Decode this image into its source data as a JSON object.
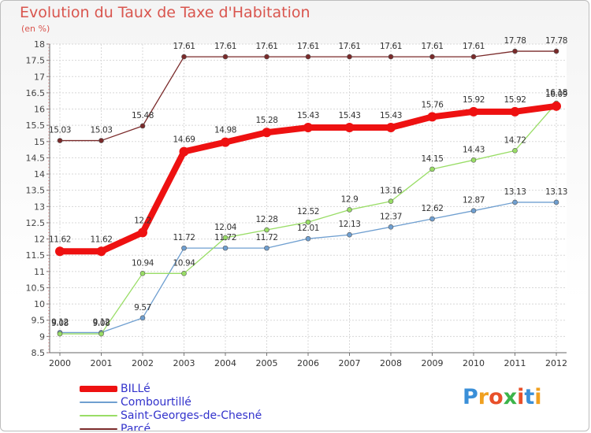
{
  "header": {
    "title": "Evolution du Taux de Taxe d'Habitation",
    "subtitle": "(en %)"
  },
  "logo": {
    "text": "Proxiti",
    "colors": [
      "#3a8fd8",
      "#f0a020",
      "#e8502a",
      "#3cb44a",
      "#e8502a",
      "#3a8fd8",
      "#f0a020"
    ]
  },
  "chart_data": {
    "type": "line",
    "title": "Evolution du Taux de Taxe d'Habitation",
    "subtitle": "(en %)",
    "xlabel": "",
    "ylabel": "(en %)",
    "x": [
      "2000",
      "2001",
      "2002",
      "2003",
      "2004",
      "2005",
      "2006",
      "2007",
      "2008",
      "2009",
      "2010",
      "2011",
      "2012"
    ],
    "ylim": [
      8.5,
      18
    ],
    "yticks": [
      "8.5",
      "9",
      "9.5",
      "10",
      "10.5",
      "11",
      "11.5",
      "12",
      "12.5",
      "13",
      "13.5",
      "14",
      "14.5",
      "15",
      "15.5",
      "16",
      "16.5",
      "17",
      "17.5",
      "18"
    ],
    "grid": true,
    "legend_position": "bottom-left",
    "series": [
      {
        "name": "BILLé",
        "color": "#ee1111",
        "values": [
          11.62,
          11.62,
          12.2,
          14.69,
          14.98,
          15.28,
          15.43,
          15.43,
          15.43,
          15.76,
          15.92,
          15.92,
          16.09
        ],
        "labels": [
          "11.62",
          "11.62",
          "12.2",
          "14.69",
          "14.98",
          "15.28",
          "15.43",
          "15.43",
          "15.43",
          "15.76",
          "15.92",
          "15.92",
          "16.09"
        ]
      },
      {
        "name": "Combourtillé",
        "color": "#6f9fd0",
        "values": [
          9.12,
          9.12,
          9.57,
          11.72,
          11.72,
          11.72,
          12.01,
          12.13,
          12.37,
          12.62,
          12.87,
          13.13,
          13.13
        ],
        "labels": [
          "9.12",
          "9.12",
          "9.57",
          "11.72",
          "11.72",
          "11.72",
          "12.01",
          "12.13",
          "12.37",
          "12.62",
          "12.87",
          "13.13",
          "13.13"
        ]
      },
      {
        "name": "Saint-Georges-de-Chesné",
        "color": "#99dd66",
        "values": [
          9.08,
          9.08,
          10.94,
          10.94,
          12.04,
          12.28,
          12.52,
          12.9,
          13.16,
          14.15,
          14.43,
          14.72,
          16.18
        ],
        "labels": [
          "9.08",
          "9.08",
          "10.94",
          "10.94",
          "12.04",
          "12.28",
          "12.52",
          "12.9",
          "13.16",
          "14.15",
          "14.43",
          "14.72",
          "16.18"
        ]
      },
      {
        "name": "Parcé",
        "color": "#7a2a2a",
        "values": [
          15.03,
          15.03,
          15.48,
          17.61,
          17.61,
          17.61,
          17.61,
          17.61,
          17.61,
          17.61,
          17.61,
          17.78,
          17.78
        ],
        "labels": [
          "15.03",
          "15.03",
          "15.48",
          "17.61",
          "17.61",
          "17.61",
          "17.61",
          "17.61",
          "17.61",
          "17.61",
          "17.61",
          "17.78",
          "17.78"
        ]
      }
    ]
  }
}
